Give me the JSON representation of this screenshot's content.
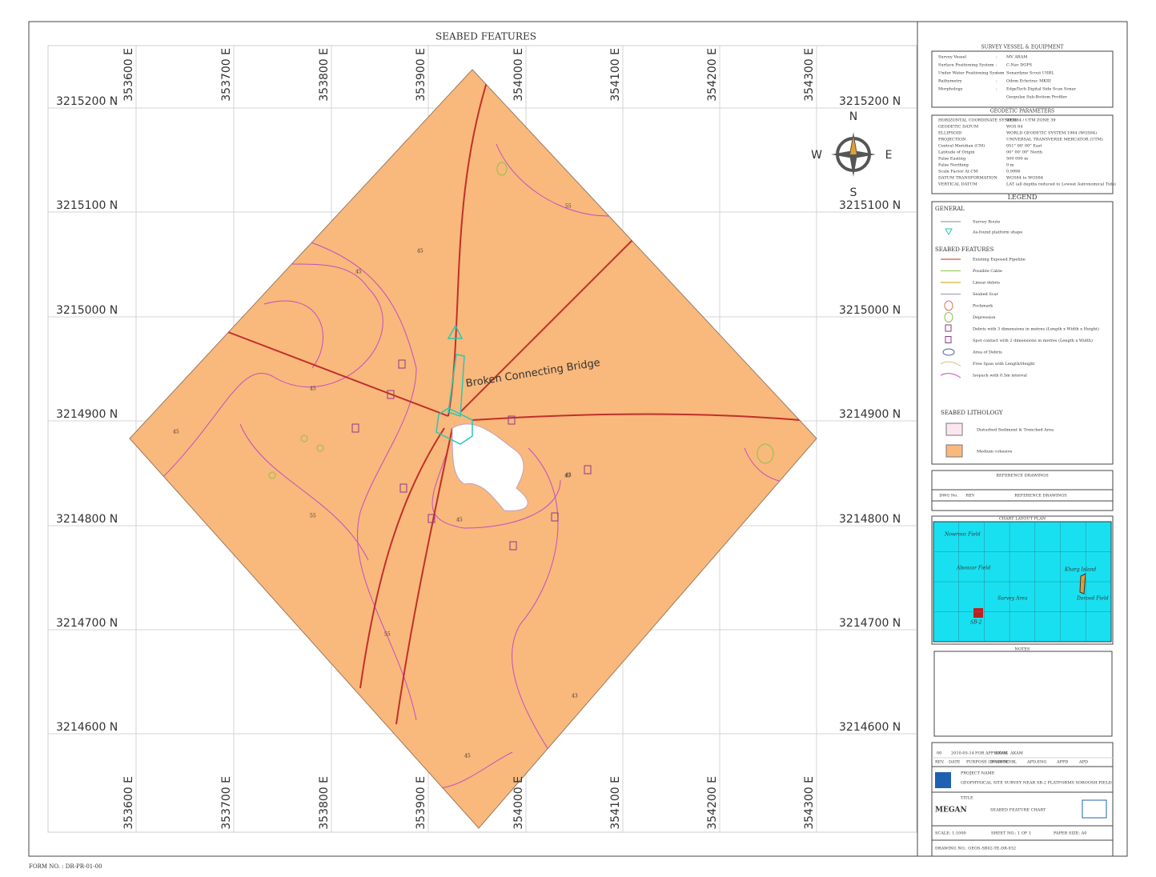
{
  "map": {
    "title": "SEABED FEATURES",
    "eastings": [
      "353600 E",
      "353700 E",
      "353800 E",
      "353900 E",
      "354000 E",
      "354100 E",
      "354200 E",
      "354300 E"
    ],
    "northings": [
      "3215200 N",
      "3215100 N",
      "3215000 N",
      "3214900 N",
      "3214800 N",
      "3214700 N",
      "3214600 N"
    ],
    "compass": {
      "n": "N",
      "e": "E",
      "s": "S",
      "w": "W"
    },
    "annotation": "Broken Connecting Bridge",
    "contour_labels": [
      "55",
      "45",
      "45",
      "45",
      "45",
      "45",
      "55",
      "45",
      "43",
      "43",
      "55",
      "45"
    ]
  },
  "survey_vessel": {
    "title": "SURVEY VESSEL & EQUIPMENT",
    "sep": ":",
    "rows": [
      [
        "Survey Vessel",
        "MV ARAM"
      ],
      [
        "Surface Positioning System",
        "C-Nav DGPS"
      ],
      [
        "Under Water Positioning System",
        "Sonardyne Scout USBL"
      ],
      [
        "Bathymetry",
        "Odom Echotrac MKIII"
      ],
      [
        "Morphology",
        "EdgeTech Digital Side Scan Sonar"
      ],
      [
        "",
        "Geopulse Sub-Bottom Profiler"
      ]
    ]
  },
  "geodetic": {
    "title": "GEODETIC PARAMETERS",
    "rows": [
      [
        "HORIZONTAL COORDINATE SYSTEM",
        "WGS84 / UTM ZONE 39"
      ],
      [
        "GEODETIC DATUM",
        "WGS 84"
      ],
      [
        "ELLIPSOID",
        "WORLD GEODETIC SYSTEM 1984 (WGS84)"
      ],
      [
        "PROJECTION",
        "UNIVERSAL TRANSVERSE MERCATOR (UTM)"
      ],
      [
        "Central Meridian (CM)",
        "051° 00' 00\" East"
      ],
      [
        "Latitude of Origin",
        "00° 00' 00\" North"
      ],
      [
        "False Easting",
        "500 000 m"
      ],
      [
        "False Northing",
        "0 m"
      ],
      [
        "Scale Factor At CM",
        "0.9996"
      ],
      [
        "DATUM TRANSFORMATION",
        "WGS84 to WGS84"
      ],
      [
        "VERTICAL DATUM",
        "LAT (all depths reduced to Lowest Astronomical Tide)"
      ]
    ]
  },
  "legend": {
    "title": "LEGEND",
    "general": "GENERAL",
    "general_items": [
      "Survey Route",
      "As-found platform shape"
    ],
    "features": "SEABED FEATURES",
    "feature_items": [
      "Existing Exposed Pipeline",
      "Possible Cable",
      "Linear debris",
      "Seabed Scar",
      "Pockmark",
      "Depression",
      "Debris with 3 dimensions in metres (Length x Width x Height)",
      "Spot contact with 2 dimensions in metres (Length x Width)",
      "Area of Debris",
      "Free Span with Length/Height",
      "Isopach with 0.5m interval"
    ],
    "lithology": "SEABED LITHOLOGY",
    "lithology_items": [
      "Disturbed Sediment & Trenched Area",
      "Medium cohesive"
    ]
  },
  "reference": {
    "title": "REFERENCE DRAWINGS",
    "headers": [
      "DWG No.",
      "REV",
      "REFERENCE DRAWINGS"
    ]
  },
  "layout_plan": {
    "title": "CHART LAYOUT PLAN",
    "labels": [
      "Nowrooz Field",
      "Aboozar Field",
      "Kharg Island",
      "Dorood Field",
      "Survey Area",
      "SB-2"
    ]
  },
  "notes": {
    "title": "NOTES"
  },
  "title_block": {
    "revision": [
      "00",
      "2010-05-14",
      "FOR APPROVAL",
      "AKAM",
      "AKAM"
    ],
    "headers": [
      "REV.",
      "DATE",
      "PURPOSE OF ISSUE",
      "DRAWN",
      "CHK.",
      "APD.ENG",
      "APPD",
      "APD"
    ],
    "project_label": "PROJECT NAME",
    "project": "GEOPHYSICAL SITE SURVEY NEAR SB-2 PLATFORMS SOROOSH FIELD",
    "title_label": "TITLE",
    "title": "SEABED FEATURE CHART",
    "logo": "MEGAN",
    "scale": "SCALE: 1:1000",
    "sheet": "SHEET NO.: 1 OF 1",
    "paper": "PAPER SIZE: A0",
    "drawing_no": "DRAWING NO.: GEOS-SB02-TE-DR-932"
  },
  "footer": "FORM NO. : DR-PR-01-00"
}
